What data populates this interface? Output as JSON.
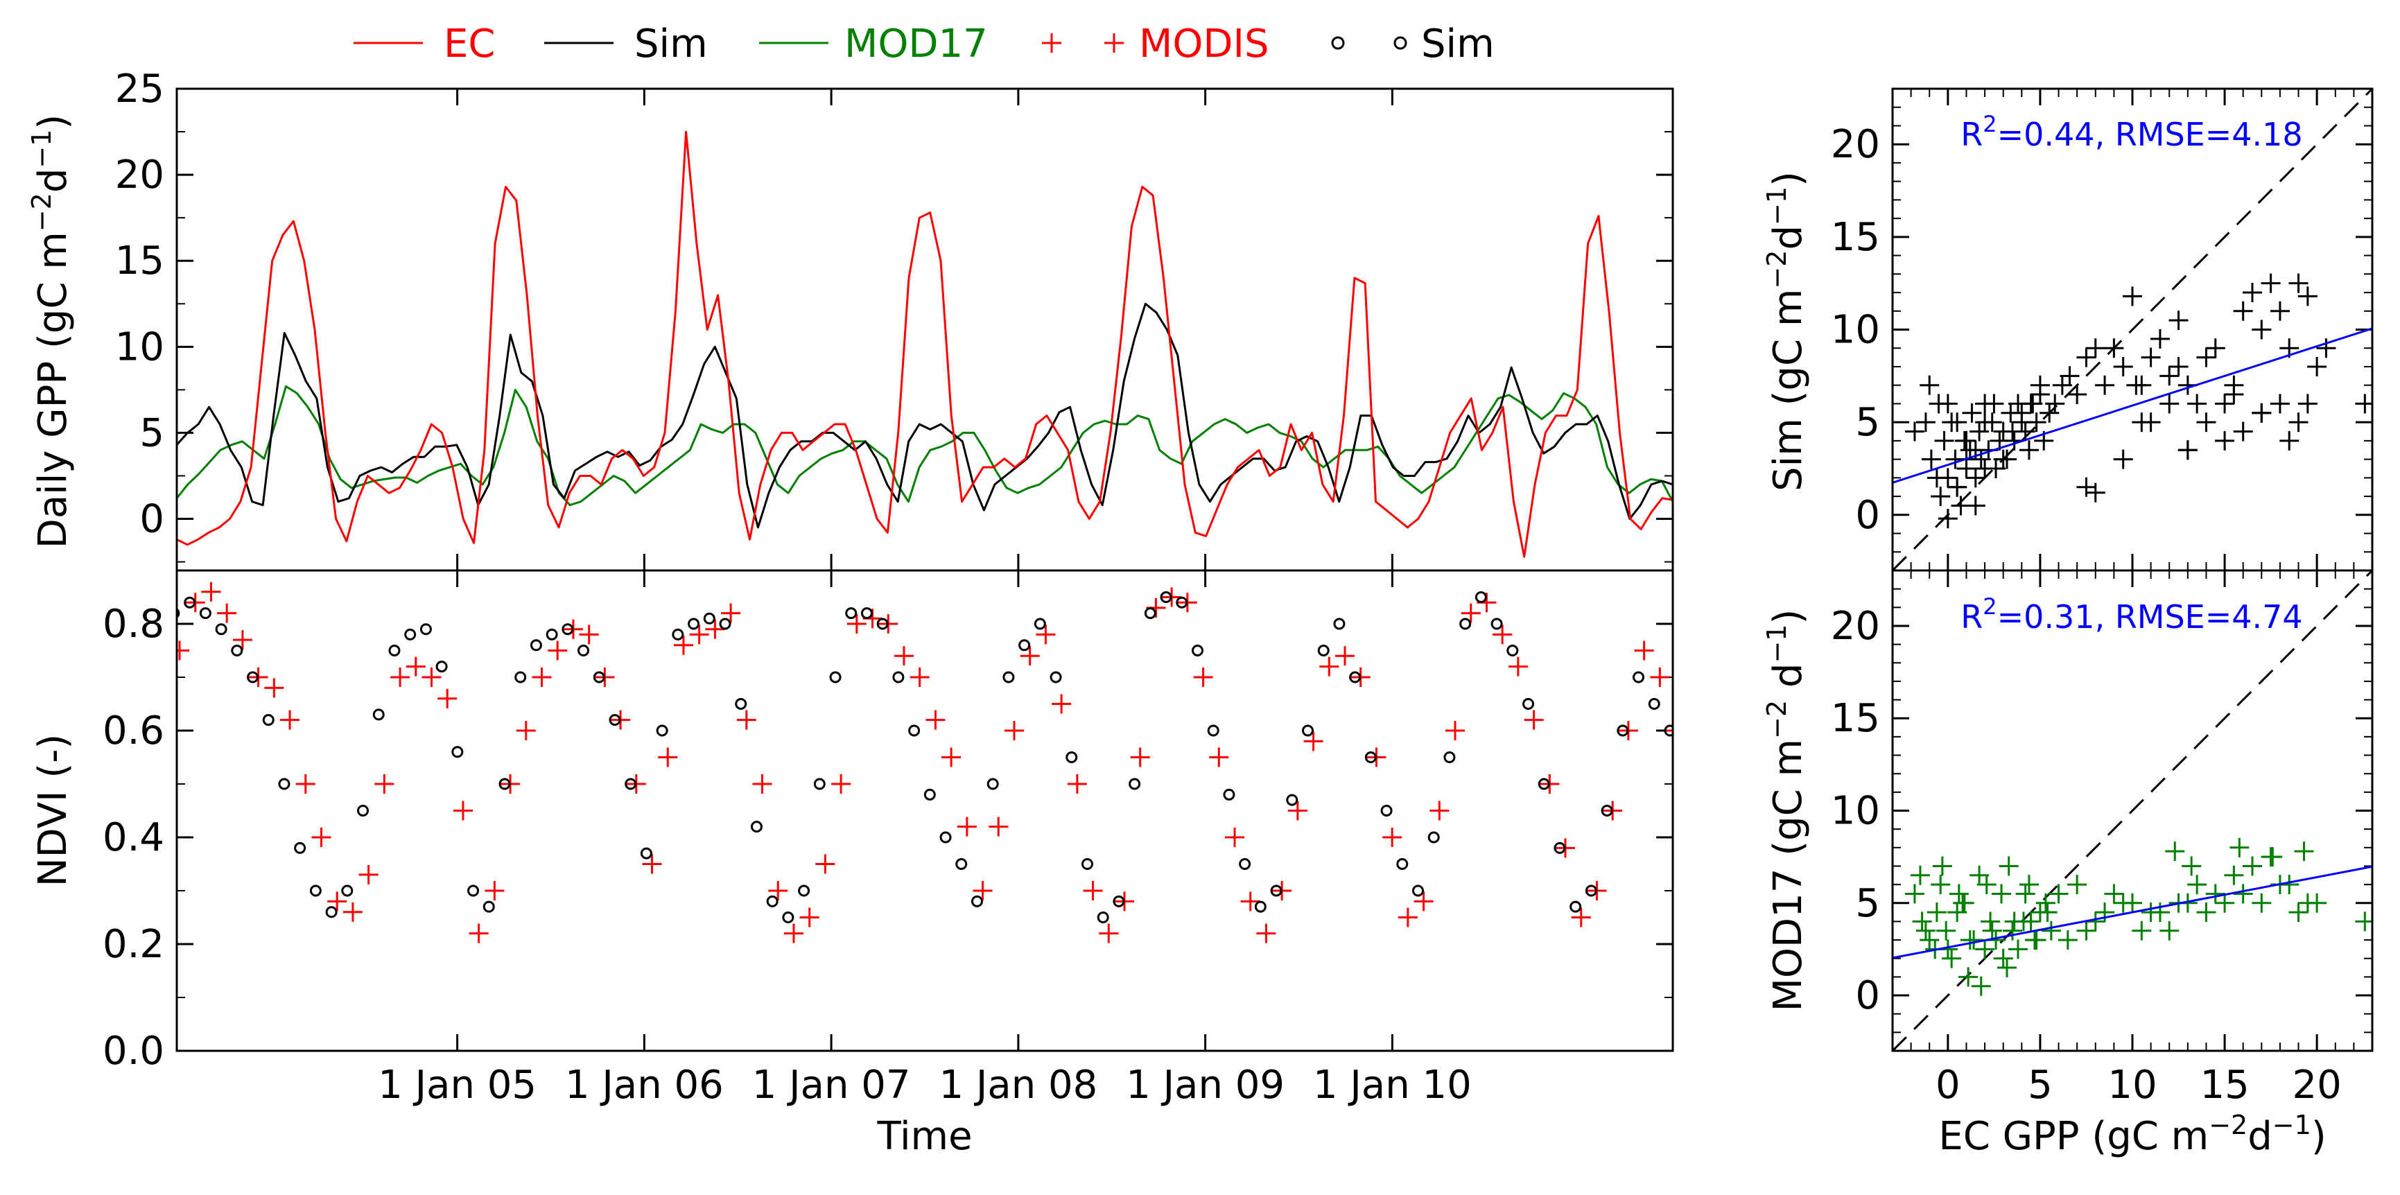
{
  "legend": {
    "items": [
      {
        "label": "EC",
        "marker": "line",
        "color": "#ff0000"
      },
      {
        "label": "Sim",
        "marker": "line",
        "color": "#000000"
      },
      {
        "label": "MOD17",
        "marker": "line",
        "color": "#008000"
      },
      {
        "label": "MODIS",
        "marker": "plus",
        "color": "#ff0000"
      },
      {
        "label": "Sim",
        "marker": "circle",
        "color": "#000000"
      }
    ]
  },
  "colors": {
    "ec": "#ff0000",
    "sim": "#000000",
    "mod17": "#008000",
    "fit": "#0000ff"
  },
  "chart_data": [
    {
      "id": "gpp_timeseries",
      "type": "line",
      "ylabel": "Daily GPP (gC m⁻²d⁻¹)",
      "ylabel_main": "Daily GPP (gC m",
      "ylabel_sup1": "−2",
      "ylabel_mid": "d",
      "ylabel_sup2": "−1",
      "ylabel_end": ")",
      "xlim": [
        2003.5,
        2011.5
      ],
      "ylim": [
        -3,
        25
      ],
      "yticks": [
        0,
        5,
        10,
        15,
        20,
        25
      ],
      "ytick_labels": [
        "0",
        "5",
        "10",
        "15",
        "20",
        "25"
      ],
      "x_start": 2003.5,
      "x_end": 2011.5,
      "n_points": 140,
      "series": [
        {
          "name": "EC",
          "color": "#ff0000",
          "values": [
            -1.2,
            -1.5,
            -1.2,
            -0.8,
            -0.5,
            0,
            1,
            3,
            9,
            15,
            16.5,
            17.3,
            15,
            11,
            5,
            0,
            -1.3,
            1,
            2.5,
            2,
            1.5,
            1.8,
            2.8,
            4,
            5.5,
            5,
            3,
            0,
            -1.4,
            4,
            16,
            19.3,
            18.5,
            13,
            6,
            0.8,
            -0.5,
            1.5,
            2.5,
            2.5,
            2,
            3.5,
            4,
            3.5,
            2.5,
            3,
            5,
            12,
            22.5,
            16,
            11,
            13,
            8,
            1.5,
            -1.2,
            2,
            4,
            5,
            5,
            4,
            4.5,
            5,
            5.5,
            5.5,
            4,
            2,
            0,
            -0.8,
            5,
            14,
            17.5,
            17.8,
            15,
            6,
            1,
            2,
            3,
            3,
            3.5,
            3,
            3.5,
            5.5,
            6,
            5,
            4,
            1,
            0,
            1,
            5,
            10.5,
            17,
            19.3,
            18.8,
            14,
            8,
            2,
            -0.8,
            -1,
            0.5,
            2,
            3,
            3.5,
            4,
            2.5,
            3,
            5.5,
            4,
            5,
            2,
            1,
            6,
            14,
            13.7,
            1,
            0.5,
            0,
            -0.5,
            0,
            1,
            3,
            5,
            6,
            7,
            4,
            5,
            6.5,
            1,
            -2.2,
            2,
            5,
            6,
            6,
            7.5,
            16,
            17.6,
            12,
            5,
            0,
            -0.6,
            0.4,
            1.2,
            1.1
          ]
        },
        {
          "name": "Sim",
          "color": "#000000",
          "values": [
            4.3,
            5,
            5.5,
            6.5,
            5.5,
            4,
            3,
            1,
            0.8,
            6,
            10.8,
            9.5,
            8,
            7,
            3,
            1,
            1.2,
            2.5,
            2.8,
            3,
            2.7,
            3.2,
            3.6,
            3.6,
            4.2,
            4.2,
            4.3,
            3,
            0.8,
            2,
            6,
            10.7,
            8.5,
            8,
            6,
            2,
            1.2,
            2.8,
            3.2,
            3.6,
            3.9,
            3.6,
            3.9,
            3.1,
            3.4,
            4.2,
            4.6,
            5.5,
            7.2,
            9,
            10,
            8.5,
            7,
            2,
            -0.5,
            1.5,
            3,
            4,
            4.5,
            4.5,
            5,
            5,
            4.5,
            4,
            4.5,
            3.5,
            2,
            1,
            4.5,
            5.5,
            5.2,
            5.5,
            5,
            4.5,
            2,
            0.5,
            2,
            2.5,
            3,
            3.5,
            4.2,
            5,
            6.2,
            6.5,
            4,
            2,
            0.8,
            4,
            8,
            10.5,
            12.5,
            12,
            11,
            9.5,
            5,
            2,
            1,
            2,
            2.5,
            3,
            3.5,
            3.5,
            2.8,
            3,
            4.5,
            4.8,
            4.5,
            3,
            1,
            3,
            6,
            6,
            4.3,
            3,
            2.5,
            2.5,
            3.3,
            3.3,
            3.5,
            4.5,
            6,
            5,
            5.5,
            6.5,
            8.8,
            7,
            5,
            3.8,
            4.2,
            5,
            5.5,
            5.5,
            6,
            4.5,
            2,
            0,
            0.8,
            2,
            2.2,
            2
          ]
        },
        {
          "name": "MOD17",
          "color": "#008000",
          "values": [
            1.2,
            2,
            2.6,
            3.3,
            4,
            4.3,
            4.5,
            4,
            3.5,
            5.5,
            7.7,
            7.3,
            6.5,
            5.5,
            3.5,
            2.3,
            1.8,
            2,
            2.2,
            2.3,
            2.4,
            2.4,
            2.1,
            2.5,
            2.8,
            3,
            3.2,
            2.5,
            2,
            3,
            5,
            7.5,
            6.5,
            4.5,
            3.5,
            1.5,
            0.8,
            1,
            1.5,
            2,
            2.5,
            2.2,
            1.5,
            2,
            2.5,
            3,
            3.5,
            4,
            5.5,
            5.2,
            5,
            5.5,
            5.5,
            5,
            3.5,
            2,
            1.5,
            2.5,
            3,
            3.5,
            3.8,
            4,
            4.5,
            4.5,
            4,
            3.5,
            2,
            1,
            3,
            4,
            4.2,
            4.5,
            5,
            5,
            4,
            2.8,
            1.8,
            1.5,
            1.8,
            2,
            2.5,
            3,
            4,
            5,
            5.5,
            5.7,
            5.5,
            5.5,
            6,
            5.8,
            4,
            3.5,
            3.2,
            4.5,
            5,
            5.5,
            5.8,
            5.5,
            5,
            5.3,
            5.5,
            5,
            4.8,
            4.5,
            3.5,
            3,
            3.5,
            4,
            4,
            4,
            4.2,
            3.5,
            2.5,
            2,
            1.5,
            2,
            2.5,
            3,
            4,
            5,
            6,
            7,
            7.2,
            6.8,
            6.3,
            5.8,
            6.3,
            7.3,
            7,
            6.5,
            5.5,
            3,
            2,
            1.5,
            2,
            2.3,
            2.2,
            1
          ]
        }
      ]
    },
    {
      "id": "ndvi_timeseries",
      "type": "scatter",
      "ylabel": "NDVI (-)",
      "xlabel": "Time",
      "xlim": [
        2003.5,
        2011.5
      ],
      "ylim": [
        0,
        0.9
      ],
      "yticks": [
        0,
        0.2,
        0.4,
        0.6,
        0.8
      ],
      "ytick_labels": [
        "0.0",
        "0.2",
        "0.4",
        "0.6",
        "0.8"
      ],
      "xtick_values": [
        2005,
        2006,
        2007,
        2008,
        2009,
        2010
      ],
      "xtick_labels": [
        "1 Jan 05",
        "1 Jan 06",
        "1 Jan 07",
        "1 Jan 08",
        "1 Jan 09",
        "1 Jan 10"
      ],
      "x_start": 2003.5,
      "x_end": 2011.5,
      "n_points": 96,
      "series": [
        {
          "name": "MODIS",
          "marker": "plus",
          "color": "#ff0000",
          "values": [
            0.75,
            0.84,
            0.86,
            0.82,
            0.77,
            0.7,
            0.68,
            0.62,
            0.5,
            0.4,
            0.28,
            0.26,
            0.33,
            0.5,
            0.7,
            0.72,
            0.7,
            0.66,
            0.45,
            0.22,
            0.3,
            0.5,
            0.6,
            0.7,
            0.75,
            0.79,
            0.78,
            0.7,
            0.62,
            0.5,
            0.35,
            0.55,
            0.76,
            0.78,
            0.79,
            0.82,
            0.62,
            0.5,
            0.3,
            0.22,
            0.25,
            0.35,
            0.5,
            0.8,
            0.81,
            0.8,
            0.74,
            0.7,
            0.62,
            0.55,
            0.42,
            0.3,
            0.42,
            0.6,
            0.74,
            0.78,
            0.65,
            0.5,
            0.3,
            0.22,
            0.28,
            0.55,
            0.83,
            0.85,
            0.84,
            0.7,
            0.55,
            0.4,
            0.28,
            0.22,
            0.3,
            0.45,
            0.58,
            0.72,
            0.74,
            0.7,
            0.55,
            0.4,
            0.25,
            0.28,
            0.45,
            0.6,
            0.82,
            0.84,
            0.78,
            0.72,
            0.62,
            0.5,
            0.38,
            0.25,
            0.3,
            0.45,
            0.6,
            0.75,
            0.7,
            0.6
          ]
        },
        {
          "name": "Sim",
          "marker": "circle",
          "color": "#000000",
          "values": [
            0.82,
            0.84,
            0.82,
            0.79,
            0.75,
            0.7,
            0.62,
            0.5,
            0.38,
            0.3,
            0.26,
            0.3,
            0.45,
            0.63,
            0.75,
            0.78,
            0.79,
            0.72,
            0.56,
            0.3,
            0.27,
            0.5,
            0.7,
            0.76,
            0.78,
            0.79,
            0.75,
            0.7,
            0.62,
            0.5,
            0.37,
            0.6,
            0.78,
            0.8,
            0.81,
            0.8,
            0.65,
            0.42,
            0.28,
            0.25,
            0.3,
            0.5,
            0.7,
            0.82,
            0.82,
            0.8,
            0.7,
            0.6,
            0.48,
            0.4,
            0.35,
            0.28,
            0.5,
            0.7,
            0.76,
            0.8,
            0.7,
            0.55,
            0.35,
            0.25,
            0.28,
            0.5,
            0.82,
            0.85,
            0.84,
            0.75,
            0.6,
            0.48,
            0.35,
            0.27,
            0.3,
            0.47,
            0.6,
            0.75,
            0.8,
            0.7,
            0.55,
            0.45,
            0.35,
            0.3,
            0.4,
            0.55,
            0.8,
            0.85,
            0.8,
            0.75,
            0.65,
            0.5,
            0.38,
            0.27,
            0.3,
            0.45,
            0.6,
            0.7,
            0.65,
            0.6
          ]
        }
      ]
    },
    {
      "id": "sim_vs_ec",
      "type": "scatter",
      "ylabel_main": "Sim (gC m",
      "ylabel_sup1": "−2",
      "ylabel_mid": "d",
      "ylabel_sup2": "−1",
      "ylabel_end": ")",
      "xlim": [
        -3,
        23
      ],
      "ylim": [
        -3,
        23
      ],
      "yticks": [
        0,
        5,
        10,
        15,
        20
      ],
      "ytick_labels": [
        "0",
        "5",
        "10",
        "15",
        "20"
      ],
      "annotation": {
        "pre": "R",
        "sup": "2",
        "post": "=0.44, RMSE=4.18"
      },
      "fit": {
        "slope": 0.32,
        "intercept": 2.7
      },
      "one_to_one": true,
      "marker": "plus",
      "color": "#000000",
      "x": [
        -1.8,
        -1.2,
        -0.9,
        -0.6,
        -0.4,
        -0.2,
        0,
        0.2,
        0.4,
        0.5,
        0.7,
        0.9,
        1,
        1.2,
        1.3,
        1.5,
        1.7,
        1.8,
        2,
        2.2,
        2.4,
        2.6,
        2.8,
        3,
        3.2,
        3.4,
        3.6,
        3.8,
        4,
        4.2,
        4.4,
        4.6,
        4.8,
        5,
        5.2,
        5.5,
        5.8,
        6.2,
        6.6,
        7,
        7.5,
        8,
        -1,
        -0.5,
        0,
        0.5,
        1,
        1.5,
        2,
        2.5,
        3,
        3.5,
        4,
        4.5,
        5,
        0,
        0.5,
        1,
        1.5,
        2,
        8.5,
        9,
        9.5,
        10,
        10.5,
        11,
        11.5,
        12,
        12.5,
        13,
        13.5,
        14,
        14.5,
        15,
        15.5,
        16,
        16.5,
        17,
        17.5,
        18,
        18.5,
        19,
        19.5,
        20,
        20.5,
        22.6,
        10.2,
        11,
        12.5,
        13,
        14,
        15,
        16,
        17,
        18,
        19,
        7.5,
        8,
        9.5,
        10.5,
        12,
        13,
        15.5,
        17,
        18.5,
        19.5
      ],
      "y": [
        4.5,
        5,
        3,
        2,
        1,
        4,
        6,
        5,
        3,
        1.5,
        0.5,
        4,
        2.5,
        3.5,
        5.5,
        2,
        4.5,
        3,
        6,
        3.5,
        5,
        2.5,
        4,
        4.5,
        3,
        5.5,
        4,
        6,
        5,
        4.5,
        3.5,
        6,
        5,
        6.5,
        4,
        5.5,
        6,
        7,
        7.5,
        6.5,
        8.5,
        9,
        7,
        6,
        2,
        5,
        4,
        3.5,
        5,
        6,
        3,
        4.5,
        5.5,
        6,
        7,
        -0.2,
        1.5,
        3,
        0.5,
        2.5,
        7,
        9,
        8,
        11.8,
        7,
        8.5,
        9.5,
        7.5,
        10.5,
        7,
        6,
        8.5,
        9,
        6,
        7,
        11,
        12,
        10,
        12.5,
        11,
        9,
        12.5,
        11.8,
        8,
        9,
        6,
        7,
        5,
        8,
        3.5,
        5,
        4,
        4.5,
        5.5,
        6,
        5,
        1.5,
        1.2,
        3,
        5,
        6,
        3.5,
        6.5,
        5.5,
        4,
        6
      ]
    },
    {
      "id": "mod17_vs_ec",
      "type": "scatter",
      "xlabel_main": "EC GPP (gC m",
      "xlabel_sup1": "−2",
      "xlabel_mid": "d",
      "xlabel_sup2": "−1",
      "xlabel_end": ")",
      "ylabel_main": "MOD17 (gC m",
      "ylabel_sup1": "−2",
      "ylabel_mid": " d",
      "ylabel_sup2": "−1",
      "ylabel_end": ")",
      "xlim": [
        -3,
        23
      ],
      "ylim": [
        -3,
        23
      ],
      "xticks": [
        0,
        5,
        10,
        15,
        20
      ],
      "xtick_labels": [
        "0",
        "5",
        "10",
        "15",
        "20"
      ],
      "yticks": [
        0,
        5,
        10,
        15,
        20
      ],
      "ytick_labels": [
        "0",
        "5",
        "10",
        "15",
        "20"
      ],
      "annotation": {
        "pre": "R",
        "sup": "2",
        "post": "=0.31, RMSE=4.74"
      },
      "fit": {
        "slope": 0.19,
        "intercept": 2.6
      },
      "one_to_one": true,
      "marker": "plus",
      "color": "#008000",
      "x": [
        -1.8,
        -1.4,
        -1,
        -0.7,
        -0.4,
        -0.1,
        0.2,
        0.5,
        0.8,
        1.1,
        1.4,
        1.7,
        2,
        2.3,
        2.6,
        2.9,
        3.2,
        3.5,
        3.8,
        4.1,
        4.4,
        4.7,
        5,
        5.3,
        5.6,
        -1.2,
        -0.6,
        0,
        0.6,
        1.2,
        1.8,
        2.4,
        3,
        3.6,
        4.2,
        4.8,
        5.4,
        -1.5,
        -0.3,
        0.9,
        2.1,
        3.3,
        4.5,
        6,
        7,
        8,
        9,
        10,
        11,
        12,
        13,
        14,
        15,
        16,
        17,
        18,
        19,
        20,
        6.5,
        7.5,
        8.5,
        9.5,
        10.5,
        11.5,
        12.5,
        13.5,
        14.5,
        15.5,
        16.5,
        17.5,
        18.5,
        19.5,
        22.6,
        12.3,
        13.2,
        15.8,
        17.6,
        19.3
      ],
      "y": [
        5.5,
        4,
        3,
        2.5,
        6,
        3.5,
        2,
        4.5,
        5,
        1,
        3,
        6.5,
        2.5,
        4,
        3,
        5.5,
        1.5,
        3.5,
        2.5,
        4,
        6,
        3,
        4.5,
        5,
        3.5,
        3.5,
        4.5,
        2.5,
        5.5,
        3,
        0.5,
        3.5,
        2,
        4,
        5.5,
        3,
        4.5,
        6.5,
        7,
        5,
        6,
        7,
        4,
        5.5,
        6,
        4,
        5.5,
        5,
        4.5,
        3.5,
        5,
        4.5,
        5,
        5.5,
        5,
        6,
        4.5,
        5,
        3,
        3.5,
        4.5,
        5,
        3.5,
        4.5,
        5,
        6,
        5.5,
        6.5,
        7,
        7.5,
        6,
        5,
        4,
        7.8,
        7,
        8,
        7.5,
        7.8
      ]
    }
  ]
}
